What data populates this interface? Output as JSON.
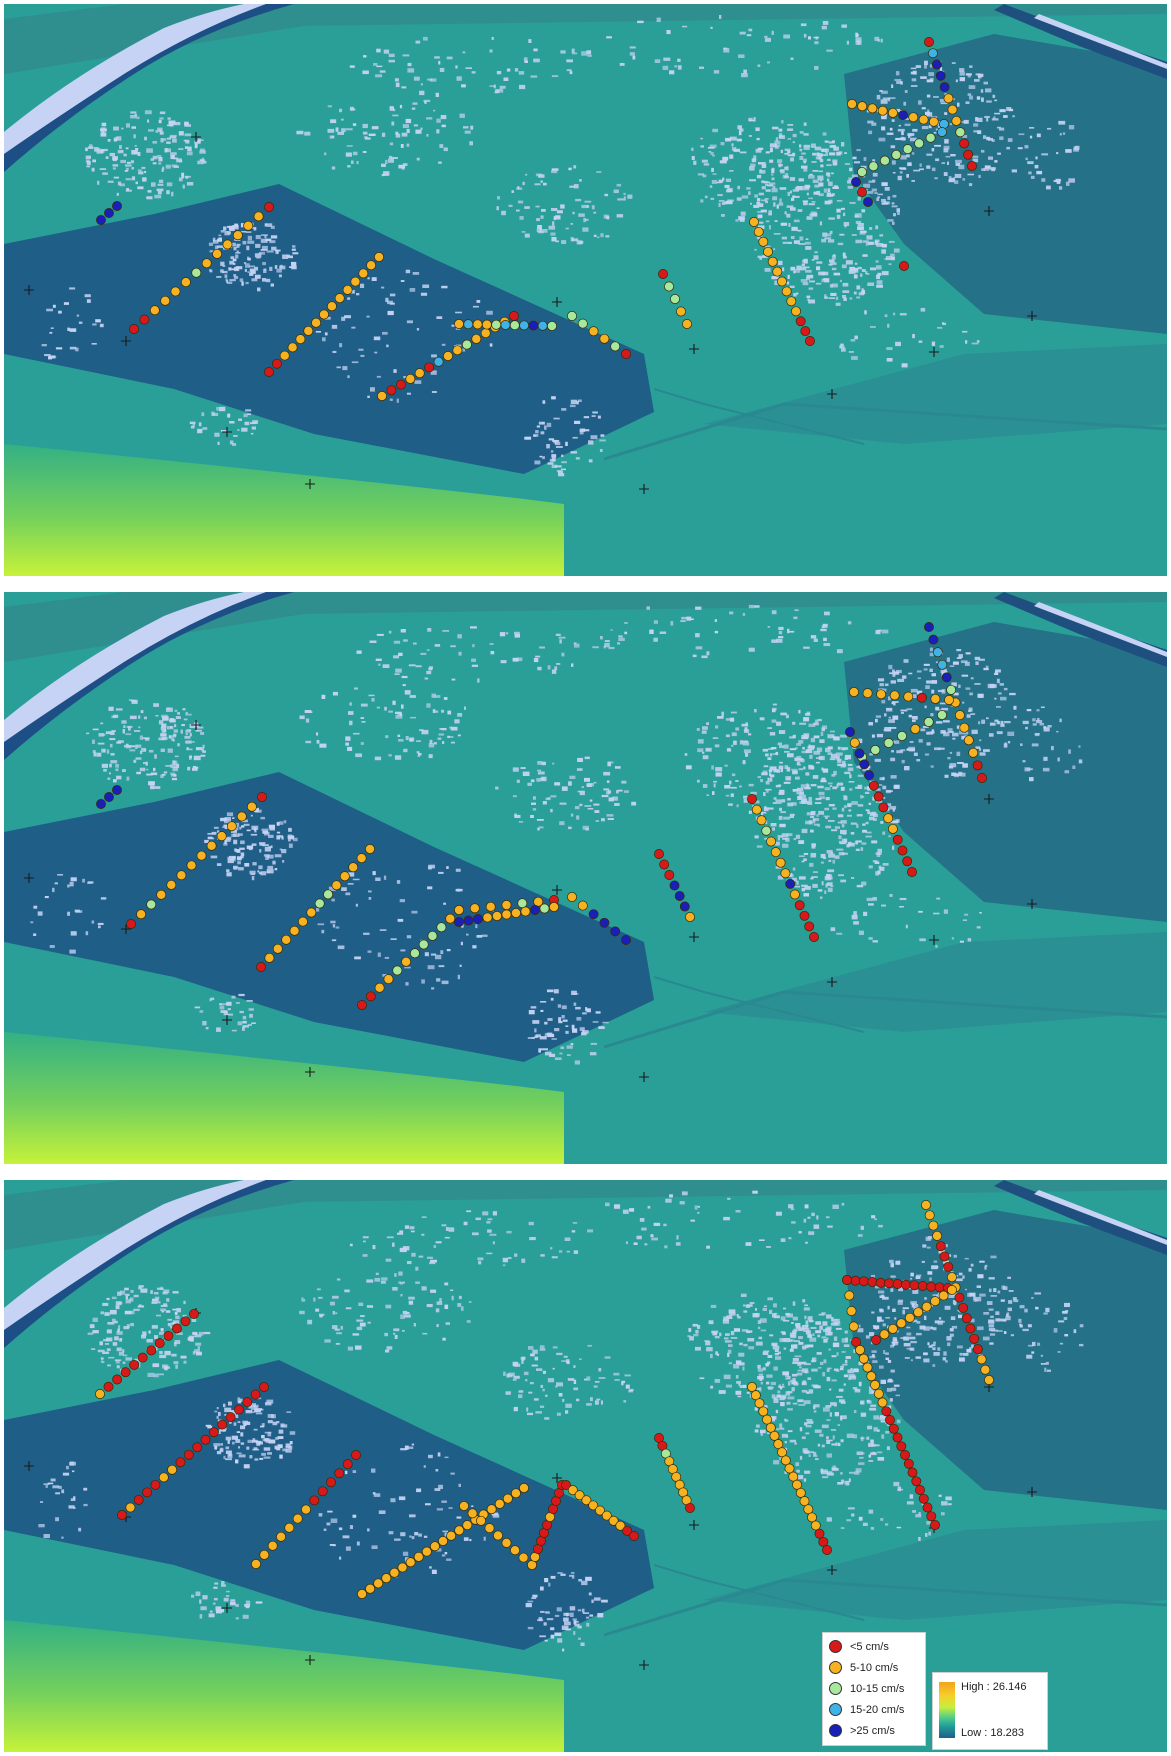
{
  "colors": {
    "lt5": "#d7191c",
    "c5_10": "#f6b221",
    "c10_15": "#a8e89c",
    "c15_20": "#3fb2e8",
    "gt25": "#1a1fb8",
    "water_mid": "#2a9f98",
    "water_deep": "#1f5f87",
    "shoal": "#b7f04a",
    "patch": "#c7d3f4"
  },
  "legend": {
    "velocity_classes": [
      {
        "label": "<5 cm/s",
        "color_key": "lt5"
      },
      {
        "label": "5-10 cm/s",
        "color_key": "c5_10"
      },
      {
        "label": "10-15 cm/s",
        "color_key": "c10_15"
      },
      {
        "label": "15-20 cm/s",
        "color_key": "c15_20"
      },
      {
        "label": ">25 cm/s",
        "color_key": "gt25"
      }
    ],
    "elevation_high": "High : 26.146",
    "elevation_low": "Low : 18.283"
  },
  "panels": [
    {
      "transects": [
        {
          "start": [
            130,
            325
          ],
          "end": [
            265,
            203
          ],
          "classes": [
            "lt5",
            "lt5",
            "c5_10",
            "c5_10",
            "c5_10",
            "c5_10",
            "c10_15",
            "c5_10",
            "c5_10",
            "c5_10",
            "c5_10",
            "c5_10",
            "c5_10",
            "lt5"
          ]
        },
        {
          "start": [
            265,
            368
          ],
          "end": [
            375,
            253
          ],
          "classes": [
            "lt5",
            "lt5",
            "c5_10",
            "c5_10",
            "c5_10",
            "c5_10",
            "c5_10",
            "c5_10",
            "c5_10",
            "c5_10",
            "c5_10",
            "c5_10",
            "c5_10",
            "c5_10",
            "c5_10"
          ]
        },
        {
          "start": [
            378,
            392
          ],
          "end": [
            510,
            312
          ],
          "classes": [
            "c5_10",
            "lt5",
            "lt5",
            "c5_10",
            "c5_10",
            "lt5",
            "c15_20",
            "c5_10",
            "c5_10",
            "c10_15",
            "c5_10",
            "c5_10",
            "c5_10",
            "c5_10",
            "lt5"
          ]
        },
        {
          "start": [
            455,
            320
          ],
          "end": [
            548,
            322
          ],
          "classes": [
            "c5_10",
            "c15_20",
            "c5_10",
            "c5_10",
            "c10_15",
            "c15_20",
            "c10_15",
            "c15_20",
            "gt25",
            "c15_20",
            "c10_15"
          ]
        },
        {
          "start": [
            568,
            312
          ],
          "end": [
            622,
            350
          ],
          "classes": [
            "c10_15",
            "c10_15",
            "c5_10",
            "c5_10",
            "c10_15",
            "lt5"
          ]
        },
        {
          "start": [
            659,
            270
          ],
          "end": [
            683,
            320
          ],
          "classes": [
            "lt5",
            "c10_15",
            "c10_15",
            "c5_10",
            "c5_10"
          ]
        },
        {
          "start": [
            750,
            218
          ],
          "end": [
            806,
            337
          ],
          "classes": [
            "c5_10",
            "c5_10",
            "c5_10",
            "c5_10",
            "c5_10",
            "c5_10",
            "c5_10",
            "c5_10",
            "c5_10",
            "c5_10",
            "lt5",
            "lt5",
            "lt5"
          ]
        },
        {
          "start": [
            925,
            38
          ],
          "end": [
            968,
            162
          ],
          "classes": [
            "lt5",
            "c15_20",
            "gt25",
            "gt25",
            "gt25",
            "c5_10",
            "c5_10",
            "c5_10",
            "c10_15",
            "lt5",
            "lt5",
            "lt5"
          ]
        },
        {
          "start": [
            848,
            100
          ],
          "end": [
            940,
            120
          ],
          "classes": [
            "c5_10",
            "c5_10",
            "c5_10",
            "c5_10",
            "c5_10",
            "gt25",
            "c5_10",
            "c5_10",
            "c5_10",
            "c15_20"
          ]
        },
        {
          "start": [
            858,
            168
          ],
          "end": [
            938,
            128
          ],
          "classes": [
            "c10_15",
            "c10_15",
            "c10_15",
            "c10_15",
            "c10_15",
            "c10_15",
            "c10_15",
            "c15_20"
          ]
        },
        {
          "start": [
            852,
            178
          ],
          "end": [
            864,
            198
          ],
          "classes": [
            "gt25",
            "lt5",
            "gt25"
          ]
        },
        {
          "start": [
            97,
            216
          ],
          "end": [
            113,
            202
          ],
          "classes": [
            "gt25",
            "gt25",
            "gt25"
          ]
        },
        {
          "start": [
            900,
            262
          ],
          "end": [
            900,
            262
          ],
          "classes": [
            "lt5"
          ]
        }
      ]
    },
    {
      "transects": [
        {
          "start": [
            127,
            332
          ],
          "end": [
            258,
            205
          ],
          "classes": [
            "lt5",
            "c5_10",
            "c10_15",
            "c5_10",
            "c5_10",
            "c5_10",
            "c5_10",
            "c5_10",
            "c5_10",
            "c5_10",
            "c5_10",
            "c5_10",
            "c5_10",
            "lt5"
          ]
        },
        {
          "start": [
            257,
            375
          ],
          "end": [
            366,
            257
          ],
          "classes": [
            "lt5",
            "c5_10",
            "c5_10",
            "c5_10",
            "c5_10",
            "c5_10",
            "c5_10",
            "c10_15",
            "c10_15",
            "c5_10",
            "c5_10",
            "c5_10",
            "c5_10",
            "c5_10"
          ]
        },
        {
          "start": [
            358,
            413
          ],
          "end": [
            455,
            318
          ],
          "classes": [
            "lt5",
            "lt5",
            "c5_10",
            "c5_10",
            "c10_15",
            "c5_10",
            "c10_15",
            "c10_15",
            "c10_15",
            "c10_15",
            "c5_10",
            "c5_10"
          ]
        },
        {
          "start": [
            455,
            318
          ],
          "end": [
            550,
            308
          ],
          "classes": [
            "c5_10",
            "c5_10",
            "c5_10",
            "c5_10",
            "c10_15",
            "c5_10",
            "lt5"
          ]
        },
        {
          "start": [
            455,
            330
          ],
          "end": [
            550,
            315
          ],
          "classes": [
            "gt25",
            "gt25",
            "gt25",
            "c5_10",
            "c5_10",
            "c5_10",
            "c5_10",
            "c5_10",
            "gt25",
            "c10_15",
            "c5_10"
          ]
        },
        {
          "start": [
            568,
            305
          ],
          "end": [
            622,
            348
          ],
          "classes": [
            "c5_10",
            "c5_10",
            "gt25",
            "gt25",
            "gt25",
            "gt25"
          ]
        },
        {
          "start": [
            655,
            262
          ],
          "end": [
            686,
            325
          ],
          "classes": [
            "lt5",
            "lt5",
            "lt5",
            "gt25",
            "gt25",
            "gt25",
            "c5_10"
          ]
        },
        {
          "start": [
            748,
            207
          ],
          "end": [
            810,
            345
          ],
          "classes": [
            "lt5",
            "c5_10",
            "c5_10",
            "c10_15",
            "c5_10",
            "c5_10",
            "c5_10",
            "c5_10",
            "gt25",
            "c5_10",
            "lt5",
            "lt5",
            "lt5",
            "lt5"
          ]
        },
        {
          "start": [
            925,
            35
          ],
          "end": [
            978,
            186
          ],
          "classes": [
            "gt25",
            "gt25",
            "c15_20",
            "c15_20",
            "gt25",
            "c10_15",
            "c5_10",
            "c5_10",
            "c5_10",
            "c5_10",
            "c5_10",
            "lt5",
            "lt5"
          ]
        },
        {
          "start": [
            850,
            100
          ],
          "end": [
            945,
            108
          ],
          "classes": [
            "c5_10",
            "c5_10",
            "c5_10",
            "c5_10",
            "c5_10",
            "lt5",
            "c5_10",
            "c5_10"
          ]
        },
        {
          "start": [
            858,
            165
          ],
          "end": [
            938,
            123
          ],
          "classes": [
            "c10_15",
            "c10_15",
            "c10_15",
            "c10_15",
            "c5_10",
            "c10_15",
            "c10_15"
          ]
        },
        {
          "start": [
            846,
            140
          ],
          "end": [
            908,
            280
          ],
          "classes": [
            "gt25",
            "c5_10",
            "gt25",
            "gt25",
            "gt25",
            "lt5",
            "lt5",
            "lt5",
            "c5_10",
            "c5_10",
            "lt5",
            "lt5",
            "lt5",
            "lt5"
          ]
        },
        {
          "start": [
            97,
            212
          ],
          "end": [
            113,
            198
          ],
          "classes": [
            "gt25",
            "gt25",
            "gt25"
          ]
        }
      ]
    },
    {
      "transects": [
        {
          "start": [
            96,
            214
          ],
          "end": [
            190,
            134
          ],
          "classes": [
            "c5_10",
            "lt5",
            "lt5",
            "lt5",
            "lt5",
            "lt5",
            "lt5",
            "lt5",
            "lt5",
            "lt5",
            "lt5",
            "lt5"
          ]
        },
        {
          "start": [
            118,
            335
          ],
          "end": [
            260,
            207
          ],
          "classes": [
            "lt5",
            "c5_10",
            "lt5",
            "lt5",
            "lt5",
            "c5_10",
            "c5_10",
            "lt5",
            "lt5",
            "lt5",
            "lt5",
            "lt5",
            "lt5",
            "lt5",
            "lt5",
            "lt5",
            "lt5",
            "lt5"
          ]
        },
        {
          "start": [
            252,
            384
          ],
          "end": [
            352,
            275
          ],
          "classes": [
            "c5_10",
            "c5_10",
            "c5_10",
            "c5_10",
            "c5_10",
            "c5_10",
            "c5_10",
            "lt5",
            "lt5",
            "lt5",
            "lt5",
            "lt5",
            "lt5"
          ]
        },
        {
          "start": [
            358,
            414
          ],
          "end": [
            520,
            308
          ],
          "classes": [
            "c5_10",
            "c5_10",
            "c5_10",
            "c5_10",
            "c5_10",
            "c5_10",
            "c5_10",
            "c5_10",
            "c5_10",
            "c5_10",
            "c5_10",
            "c5_10",
            "c5_10",
            "c5_10",
            "c5_10",
            "c5_10",
            "c5_10",
            "c5_10",
            "c5_10",
            "c5_10",
            "c5_10"
          ]
        },
        {
          "start": [
            460,
            326
          ],
          "end": [
            528,
            385
          ],
          "classes": [
            "c5_10",
            "c5_10",
            "c5_10",
            "c5_10",
            "c5_10",
            "c5_10",
            "c5_10",
            "c5_10",
            "c5_10"
          ]
        },
        {
          "start": [
            528,
            385
          ],
          "end": [
            558,
            305
          ],
          "classes": [
            "c5_10",
            "c5_10",
            "lt5",
            "lt5",
            "lt5",
            "lt5",
            "c5_10",
            "lt5",
            "lt5",
            "lt5",
            "lt5"
          ]
        },
        {
          "start": [
            562,
            305
          ],
          "end": [
            630,
            356
          ],
          "classes": [
            "lt5",
            "c5_10",
            "c5_10",
            "c5_10",
            "c5_10",
            "c5_10",
            "c5_10",
            "c5_10",
            "c5_10",
            "lt5",
            "lt5"
          ]
        },
        {
          "start": [
            655,
            258
          ],
          "end": [
            686,
            328
          ],
          "classes": [
            "lt5",
            "lt5",
            "c10_15",
            "c5_10",
            "c5_10",
            "c5_10",
            "c5_10",
            "c5_10",
            "c5_10",
            "lt5"
          ]
        },
        {
          "start": [
            748,
            207
          ],
          "end": [
            823,
            370
          ],
          "classes": [
            "c5_10",
            "c5_10",
            "c5_10",
            "c5_10",
            "c5_10",
            "c5_10",
            "c5_10",
            "c5_10",
            "c5_10",
            "c5_10",
            "c5_10",
            "c5_10",
            "c5_10",
            "c5_10",
            "c5_10",
            "c5_10",
            "c5_10",
            "c5_10",
            "lt5",
            "lt5",
            "lt5"
          ]
        },
        {
          "start": [
            922,
            25
          ],
          "end": [
            985,
            200
          ],
          "classes": [
            "c5_10",
            "c5_10",
            "c5_10",
            "c5_10",
            "lt5",
            "lt5",
            "lt5",
            "c5_10",
            "c5_10",
            "lt5",
            "lt5",
            "lt5",
            "lt5",
            "lt5",
            "lt5",
            "c5_10",
            "c5_10",
            "c5_10"
          ]
        },
        {
          "start": [
            843,
            100
          ],
          "end": [
            944,
            108
          ],
          "classes": [
            "lt5",
            "lt5",
            "lt5",
            "lt5",
            "lt5",
            "lt5",
            "lt5",
            "lt5",
            "lt5",
            "lt5",
            "lt5",
            "lt5",
            "lt5"
          ]
        },
        {
          "start": [
            872,
            160
          ],
          "end": [
            948,
            110
          ],
          "classes": [
            "lt5",
            "c5_10",
            "c5_10",
            "c5_10",
            "c5_10",
            "c5_10",
            "c5_10",
            "c5_10",
            "c5_10",
            "c5_10"
          ]
        },
        {
          "start": [
            843,
            100
          ],
          "end": [
            852,
            162
          ],
          "classes": [
            "lt5",
            "c5_10",
            "c5_10",
            "c5_10",
            "lt5"
          ]
        },
        {
          "start": [
            856,
            170
          ],
          "end": [
            931,
            345
          ],
          "classes": [
            "c5_10",
            "c5_10",
            "c5_10",
            "c5_10",
            "c5_10",
            "c5_10",
            "c5_10",
            "lt5",
            "lt5",
            "lt5",
            "lt5",
            "lt5",
            "lt5",
            "lt5",
            "lt5",
            "lt5",
            "lt5",
            "lt5",
            "lt5",
            "lt5",
            "lt5"
          ]
        }
      ]
    }
  ]
}
